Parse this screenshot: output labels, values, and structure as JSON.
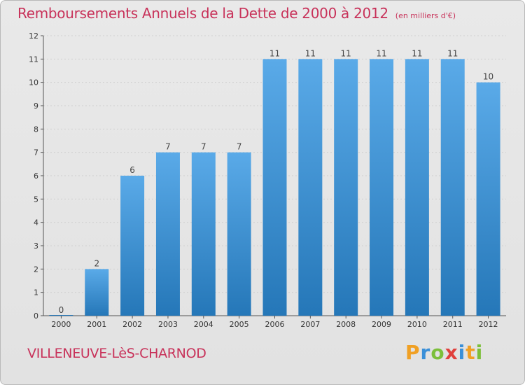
{
  "header": {
    "title": "Remboursements Annuels de la Dette de 2000 à 2012",
    "unit": "(en milliers d'€)"
  },
  "footer": {
    "commune": "VILLENEUVE-LèS-CHARNOD",
    "logo": {
      "letters": [
        "P",
        "r",
        "o",
        "x",
        "i",
        "t",
        "i"
      ],
      "colors": [
        "#f0a024",
        "#3a8fd8",
        "#7cbf3a",
        "#e0403c",
        "#3a8fd8",
        "#f0a024",
        "#7cbf3a"
      ]
    }
  },
  "colors": {
    "bar_light": "#5aaae8",
    "bar_dark": "#2577b8",
    "axis": "#555555",
    "grid": "#cfcfcf"
  },
  "chart_data": {
    "type": "bar",
    "title": "Remboursements Annuels de la Dette de 2000 à 2012",
    "xlabel": "",
    "ylabel": "",
    "categories": [
      "2000",
      "2001",
      "2002",
      "2003",
      "2004",
      "2005",
      "2006",
      "2007",
      "2008",
      "2009",
      "2010",
      "2011",
      "2012"
    ],
    "values": [
      0,
      2,
      6,
      7,
      7,
      7,
      11,
      11,
      11,
      11,
      11,
      11,
      10
    ],
    "ylim": [
      0,
      12
    ],
    "yticks": [
      0,
      1,
      2,
      3,
      4,
      5,
      6,
      7,
      8,
      9,
      10,
      11,
      12
    ],
    "grid": true,
    "legend": "none"
  }
}
